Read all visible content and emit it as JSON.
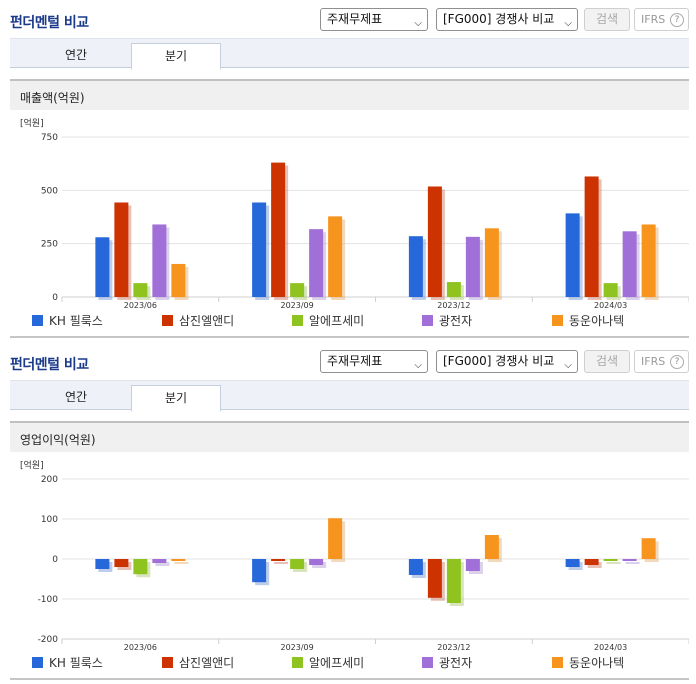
{
  "panels": [
    {
      "title": "펀더멘털 비교",
      "select1": "주재무제표",
      "select2": "[FG000] 경쟁사 비교",
      "search_label": "검색",
      "ifrs_label": "IFRS",
      "help_label": "?",
      "tabs": [
        "연간",
        "분기"
      ],
      "active_tab": "분기",
      "subtitle": "매출액(억원)"
    },
    {
      "title": "펀더멘털 비교",
      "select1": "주재무제표",
      "select2": "[FG000] 경쟁사 비교",
      "search_label": "검색",
      "ifrs_label": "IFRS",
      "help_label": "?",
      "tabs": [
        "연간",
        "분기"
      ],
      "active_tab": "분기",
      "subtitle": "영업이익(억원)"
    }
  ],
  "chart_data": [
    {
      "type": "bar",
      "title": "매출액(억원)",
      "unit_label": "[억원]",
      "categories": [
        "2023/06",
        "2023/09",
        "2023/12",
        "2024/03"
      ],
      "ylim": [
        0,
        750
      ],
      "yticks": [
        0,
        250,
        500,
        750
      ],
      "grid": true,
      "legend_position": "bottom",
      "series": [
        {
          "name": "KH 필룩스",
          "color": "#2668d9",
          "values": [
            280,
            443,
            285,
            392
          ]
        },
        {
          "name": "삼진엘앤디",
          "color": "#cc3300",
          "values": [
            443,
            630,
            518,
            565
          ]
        },
        {
          "name": "알에프세미",
          "color": "#8fc31f",
          "values": [
            65,
            65,
            70,
            65
          ]
        },
        {
          "name": "광전자",
          "color": "#a070d8",
          "values": [
            340,
            318,
            282,
            308
          ]
        },
        {
          "name": "동운아나텍",
          "color": "#f7941d",
          "values": [
            155,
            378,
            322,
            340
          ]
        }
      ]
    },
    {
      "type": "bar",
      "title": "영업이익(억원)",
      "unit_label": "[억원]",
      "categories": [
        "2023/06",
        "2023/09",
        "2023/12",
        "2024/03"
      ],
      "ylim": [
        -200,
        200
      ],
      "yticks": [
        -200,
        -100,
        0,
        100,
        200
      ],
      "grid": true,
      "legend_position": "bottom",
      "series": [
        {
          "name": "KH 필룩스",
          "color": "#2668d9",
          "values": [
            -25,
            -58,
            -40,
            -20
          ]
        },
        {
          "name": "삼진엘앤디",
          "color": "#cc3300",
          "values": [
            -20,
            -5,
            -97,
            -15
          ]
        },
        {
          "name": "알에프세미",
          "color": "#8fc31f",
          "values": [
            -38,
            -25,
            -110,
            -5
          ]
        },
        {
          "name": "광전자",
          "color": "#a070d8",
          "values": [
            -10,
            -15,
            -30,
            -5
          ]
        },
        {
          "name": "동운아나텍",
          "color": "#f7941d",
          "values": [
            -5,
            102,
            60,
            52
          ]
        }
      ]
    }
  ]
}
